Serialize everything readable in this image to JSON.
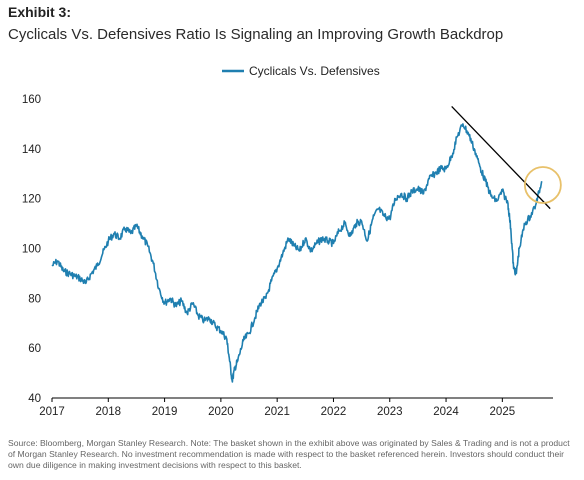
{
  "exhibit_label": "Exhibit 3:",
  "title": "Cyclicals Vs. Defensives Ratio Is Signaling an Improving Growth Backdrop",
  "source_note": "Source: Bloomberg, Morgan Stanley Research. Note: The basket shown in the exhibit above was originated by Sales & Trading and is not a product of Morgan Stanley Research. No investment recommendation is made with respect to the basket referenced herein. Investors should conduct their own due diligence in making investment decisions with respect to this basket.",
  "colors": {
    "series": "#1f7fb0",
    "trend": "#000000",
    "highlight": "#e8c16a"
  },
  "chart_data": {
    "type": "line",
    "legend_position": "top-center",
    "grid": false,
    "xlim": [
      2017.0,
      2025.9
    ],
    "ylim": [
      40,
      160
    ],
    "x_ticks": [
      2017,
      2018,
      2019,
      2020,
      2021,
      2022,
      2023,
      2024,
      2025
    ],
    "y_ticks": [
      40,
      60,
      80,
      100,
      120,
      140,
      160
    ],
    "series": [
      {
        "name": "Cyclicals Vs. Defensives",
        "x": [
          2017.0,
          2017.1,
          2017.2,
          2017.3,
          2017.4,
          2017.5,
          2017.6,
          2017.7,
          2017.8,
          2017.9,
          2018.0,
          2018.1,
          2018.2,
          2018.3,
          2018.4,
          2018.5,
          2018.6,
          2018.7,
          2018.8,
          2018.9,
          2019.0,
          2019.1,
          2019.2,
          2019.3,
          2019.4,
          2019.5,
          2019.6,
          2019.7,
          2019.8,
          2019.9,
          2020.0,
          2020.1,
          2020.15,
          2020.2,
          2020.25,
          2020.3,
          2020.4,
          2020.5,
          2020.6,
          2020.7,
          2020.8,
          2020.9,
          2021.0,
          2021.1,
          2021.2,
          2021.3,
          2021.4,
          2021.5,
          2021.6,
          2021.7,
          2021.8,
          2021.9,
          2022.0,
          2022.1,
          2022.2,
          2022.3,
          2022.4,
          2022.5,
          2022.6,
          2022.7,
          2022.8,
          2022.9,
          2023.0,
          2023.1,
          2023.2,
          2023.3,
          2023.4,
          2023.5,
          2023.6,
          2023.7,
          2023.8,
          2023.9,
          2024.0,
          2024.1,
          2024.2,
          2024.3,
          2024.4,
          2024.5,
          2024.6,
          2024.7,
          2024.8,
          2024.9,
          2025.0,
          2025.1,
          2025.15,
          2025.2,
          2025.25,
          2025.3,
          2025.4,
          2025.5,
          2025.6,
          2025.7
        ],
        "y": [
          93,
          95,
          91,
          90,
          89,
          88,
          86,
          90,
          93,
          98,
          103,
          106,
          104,
          108,
          106,
          109,
          105,
          101,
          94,
          84,
          78,
          80,
          77,
          79,
          74,
          78,
          73,
          71,
          72,
          69,
          67,
          64,
          56,
          47,
          52,
          55,
          63,
          66,
          72,
          78,
          80,
          87,
          92,
          98,
          104,
          101,
          99,
          104,
          99,
          102,
          104,
          103,
          102,
          107,
          110,
          105,
          110,
          111,
          103,
          112,
          116,
          113,
          112,
          120,
          122,
          120,
          123,
          124,
          122,
          128,
          130,
          132,
          132,
          137,
          145,
          150,
          146,
          140,
          133,
          127,
          121,
          119,
          123,
          118,
          108,
          92,
          90,
          100,
          110,
          113,
          118,
          127
        ]
      }
    ],
    "trendline": {
      "x": [
        2024.1,
        2025.85
      ],
      "y": [
        157,
        116
      ]
    },
    "highlight_circle": {
      "x": 2025.72,
      "y": 125.5
    }
  }
}
